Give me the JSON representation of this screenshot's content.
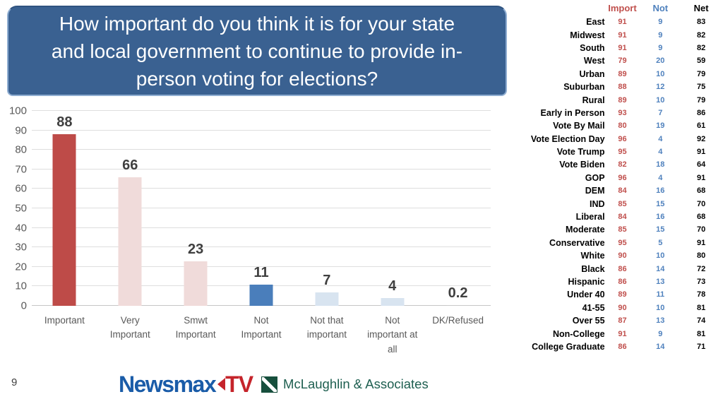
{
  "title": {
    "lines": [
      "How important do you think it is for your state",
      "and local government to continue to provide in-",
      "person voting for elections?"
    ],
    "bg_color": "#3a6191",
    "text_color": "#ffffff"
  },
  "chart_data": [
    {
      "type": "bar",
      "title": "",
      "xlabel": "",
      "ylabel": "",
      "categories": [
        "Important",
        "Very\nImportant",
        "Smwt\nImportant",
        "Not\nImportant",
        "Not that\nimportant",
        "Not\nimportant at\nall",
        "DK/Refused"
      ],
      "values": [
        88,
        66,
        23,
        11,
        7,
        4,
        0.2
      ],
      "data_labels": [
        "88",
        "66",
        "23",
        "11",
        "7",
        "4",
        "0.2"
      ],
      "bar_colors": [
        "#be4b48",
        "#f0dbda",
        "#f0dbda",
        "#4a7ebb",
        "#d8e4f0",
        "#d8e4f0",
        "#c9c9c9"
      ],
      "ylim": [
        0,
        100
      ],
      "yticks": [
        0,
        10,
        20,
        30,
        40,
        50,
        60,
        70,
        80,
        90,
        100
      ],
      "grid": true,
      "legend": false
    },
    {
      "type": "table",
      "columns": [
        "Import",
        "Not",
        "Net"
      ],
      "column_colors": {
        "import": "#c0504d",
        "not": "#4f81bd",
        "net": "#000000"
      },
      "rows": [
        {
          "label": "East",
          "import": 91,
          "not": 9,
          "net": 83
        },
        {
          "label": "Midwest",
          "import": 91,
          "not": 9,
          "net": 82
        },
        {
          "label": "South",
          "import": 91,
          "not": 9,
          "net": 82
        },
        {
          "label": "West",
          "import": 79,
          "not": 20,
          "net": 59
        },
        {
          "label": "Urban",
          "import": 89,
          "not": 10,
          "net": 79
        },
        {
          "label": "Suburban",
          "import": 88,
          "not": 12,
          "net": 75
        },
        {
          "label": "Rural",
          "import": 89,
          "not": 10,
          "net": 79
        },
        {
          "label": "Early in Person",
          "import": 93,
          "not": 7,
          "net": 86
        },
        {
          "label": "Vote By Mail",
          "import": 80,
          "not": 19,
          "net": 61
        },
        {
          "label": "Vote Election Day",
          "import": 96,
          "not": 4,
          "net": 92
        },
        {
          "label": "Vote Trump",
          "import": 95,
          "not": 4,
          "net": 91
        },
        {
          "label": "Vote Biden",
          "import": 82,
          "not": 18,
          "net": 64
        },
        {
          "label": "GOP",
          "import": 96,
          "not": 4,
          "net": 91
        },
        {
          "label": "DEM",
          "import": 84,
          "not": 16,
          "net": 68
        },
        {
          "label": "IND",
          "import": 85,
          "not": 15,
          "net": 70
        },
        {
          "label": "Liberal",
          "import": 84,
          "not": 16,
          "net": 68
        },
        {
          "label": "Moderate",
          "import": 85,
          "not": 15,
          "net": 70
        },
        {
          "label": "Conservative",
          "import": 95,
          "not": 5,
          "net": 91
        },
        {
          "label": "White",
          "import": 90,
          "not": 10,
          "net": 80
        },
        {
          "label": "Black",
          "import": 86,
          "not": 14,
          "net": 72
        },
        {
          "label": "Hispanic",
          "import": 86,
          "not": 13,
          "net": 73
        },
        {
          "label": "Under 40",
          "import": 89,
          "not": 11,
          "net": 78
        },
        {
          "label": "41-55",
          "import": 90,
          "not": 10,
          "net": 81
        },
        {
          "label": "Over 55",
          "import": 87,
          "not": 13,
          "net": 74
        },
        {
          "label": "Non-College",
          "import": 91,
          "not": 9,
          "net": 81
        },
        {
          "label": "College Graduate",
          "import": 86,
          "not": 14,
          "net": 71
        }
      ]
    }
  ],
  "footer": {
    "page_number": "9",
    "brand": {
      "newsmax": "Newsmax",
      "tv": "TV"
    },
    "partner": "McLaughlin & Associates",
    "brand_colors": {
      "newsmax_blue": "#1a5ca8",
      "tv_red": "#c5242b",
      "partner_green": "#1e5f50"
    }
  }
}
